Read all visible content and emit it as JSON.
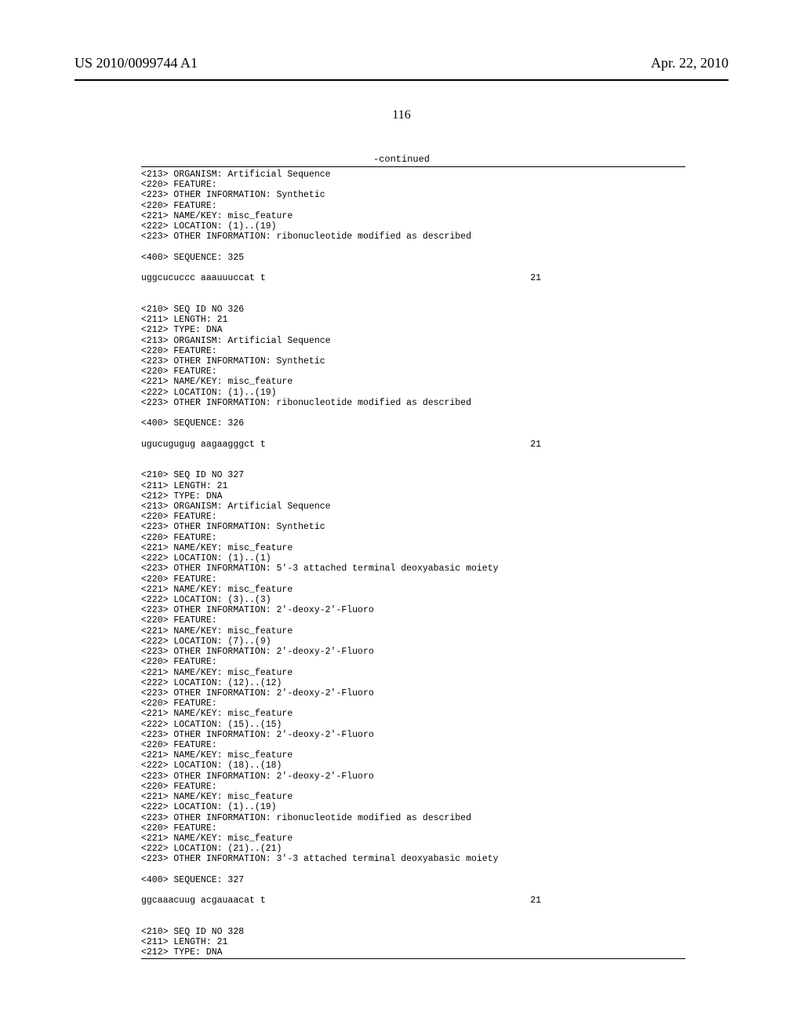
{
  "header": {
    "doc_number": "US 2010/0099744 A1",
    "doc_date": "Apr. 22, 2010"
  },
  "page_number": "116",
  "continued_label": "-continued",
  "blocks": [
    {
      "lines": [
        "<213> ORGANISM: Artificial Sequence",
        "<220> FEATURE:",
        "<223> OTHER INFORMATION: Synthetic",
        "<220> FEATURE:",
        "<221> NAME/KEY: misc_feature",
        "<222> LOCATION: (1)..(19)",
        "<223> OTHER INFORMATION: ribonucleotide modified as described"
      ]
    },
    {
      "lines": [
        "<400> SEQUENCE: 325"
      ]
    },
    {
      "type": "seq",
      "seq": "uggcucuccc aaauuuccat t",
      "len": "21"
    },
    {
      "lines": [
        "<210> SEQ ID NO 326",
        "<211> LENGTH: 21",
        "<212> TYPE: DNA",
        "<213> ORGANISM: Artificial Sequence",
        "<220> FEATURE:",
        "<223> OTHER INFORMATION: Synthetic",
        "<220> FEATURE:",
        "<221> NAME/KEY: misc_feature",
        "<222> LOCATION: (1)..(19)",
        "<223> OTHER INFORMATION: ribonucleotide modified as described"
      ]
    },
    {
      "lines": [
        "<400> SEQUENCE: 326"
      ]
    },
    {
      "type": "seq",
      "seq": "ugucugugug aagaagggct t",
      "len": "21"
    },
    {
      "lines": [
        "<210> SEQ ID NO 327",
        "<211> LENGTH: 21",
        "<212> TYPE: DNA",
        "<213> ORGANISM: Artificial Sequence",
        "<220> FEATURE:",
        "<223> OTHER INFORMATION: Synthetic",
        "<220> FEATURE:",
        "<221> NAME/KEY: misc_feature",
        "<222> LOCATION: (1)..(1)",
        "<223> OTHER INFORMATION: 5'-3 attached terminal deoxyabasic moiety",
        "<220> FEATURE:",
        "<221> NAME/KEY: misc_feature",
        "<222> LOCATION: (3)..(3)",
        "<223> OTHER INFORMATION: 2'-deoxy-2'-Fluoro",
        "<220> FEATURE:",
        "<221> NAME/KEY: misc_feature",
        "<222> LOCATION: (7)..(9)",
        "<223> OTHER INFORMATION: 2'-deoxy-2'-Fluoro",
        "<220> FEATURE:",
        "<221> NAME/KEY: misc_feature",
        "<222> LOCATION: (12)..(12)",
        "<223> OTHER INFORMATION: 2'-deoxy-2'-Fluoro",
        "<220> FEATURE:",
        "<221> NAME/KEY: misc_feature",
        "<222> LOCATION: (15)..(15)",
        "<223> OTHER INFORMATION: 2'-deoxy-2'-Fluoro",
        "<220> FEATURE:",
        "<221> NAME/KEY: misc_feature",
        "<222> LOCATION: (18)..(18)",
        "<223> OTHER INFORMATION: 2'-deoxy-2'-Fluoro",
        "<220> FEATURE:",
        "<221> NAME/KEY: misc_feature",
        "<222> LOCATION: (1)..(19)",
        "<223> OTHER INFORMATION: ribonucleotide modified as described",
        "<220> FEATURE:",
        "<221> NAME/KEY: misc_feature",
        "<222> LOCATION: (21)..(21)",
        "<223> OTHER INFORMATION: 3'-3 attached terminal deoxyabasic moiety"
      ]
    },
    {
      "lines": [
        "<400> SEQUENCE: 327"
      ]
    },
    {
      "type": "seq",
      "seq": "ggcaaacuug acgauaacat t",
      "len": "21"
    },
    {
      "lines": [
        "<210> SEQ ID NO 328",
        "<211> LENGTH: 21",
        "<212> TYPE: DNA"
      ]
    }
  ]
}
